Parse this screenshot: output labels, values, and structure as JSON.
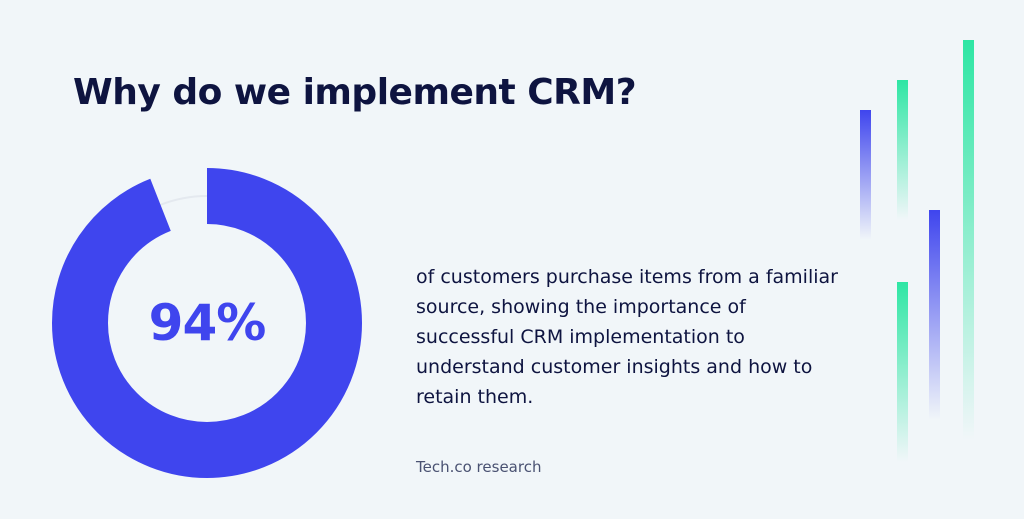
{
  "title": "Why do we implement CRM?",
  "description": "of customers purchase items from a familiar source, showing the importance of successful CRM implementation to understand customer insights and how to retain them.",
  "source": "Tech.co research",
  "colors": {
    "background": "#f1f6f9",
    "primary": "#3f45ee",
    "accent": "#2ee6a4",
    "track": "#e4e9ef",
    "text": "#0e1440"
  },
  "chart_data": {
    "type": "pie",
    "values": [
      94
    ],
    "value_label": "94%",
    "max": 100
  }
}
